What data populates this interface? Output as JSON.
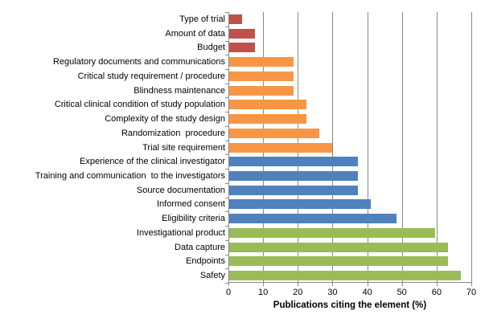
{
  "chart_data": {
    "type": "bar",
    "orientation": "horizontal",
    "title": "",
    "xlabel": "Publications citing the element (%)",
    "ylabel": "",
    "xlim": [
      0,
      70
    ],
    "xticks": [
      0,
      10,
      20,
      30,
      40,
      50,
      60,
      70
    ],
    "grid": "vertical gridlines at every 10",
    "legend_position": "none",
    "categories": [
      "Type of trial",
      "Amount of data",
      "Budget",
      "Regulatory documents and communications",
      "Critical study requirement / procedure",
      "Blindness maintenance",
      "Critical clinical condition of study population",
      "Complexity of the study design",
      "Randomization  procedure",
      "Trial site requirement",
      "Experience of the clinical investigator",
      "Training and communication  to the investigators",
      "Source documentation",
      "Informed consent",
      "Eligibility criteria",
      "Investigational product",
      "Data capture",
      "Endpoints",
      "Safety"
    ],
    "values": [
      3.7,
      7.4,
      7.4,
      18.5,
      18.5,
      18.5,
      22.2,
      22.2,
      25.9,
      29.6,
      37.0,
      37.0,
      37.0,
      40.7,
      48.1,
      59.3,
      63.0,
      63.0,
      66.7
    ],
    "bar_colors": [
      "#C0504D",
      "#C0504D",
      "#C0504D",
      "#F79646",
      "#F79646",
      "#F79646",
      "#F79646",
      "#F79646",
      "#F79646",
      "#F79646",
      "#4F81BD",
      "#4F81BD",
      "#4F81BD",
      "#4F81BD",
      "#4F81BD",
      "#9BBB59",
      "#9BBB59",
      "#9BBB59",
      "#9BBB59"
    ]
  },
  "colors": {
    "group_red": "#C0504D",
    "group_orange": "#F79646",
    "group_blue": "#4F81BD",
    "group_green": "#9BBB59",
    "axis_and_gridlines": "#898989",
    "text": "#000000",
    "background": "#FFFFFF"
  }
}
